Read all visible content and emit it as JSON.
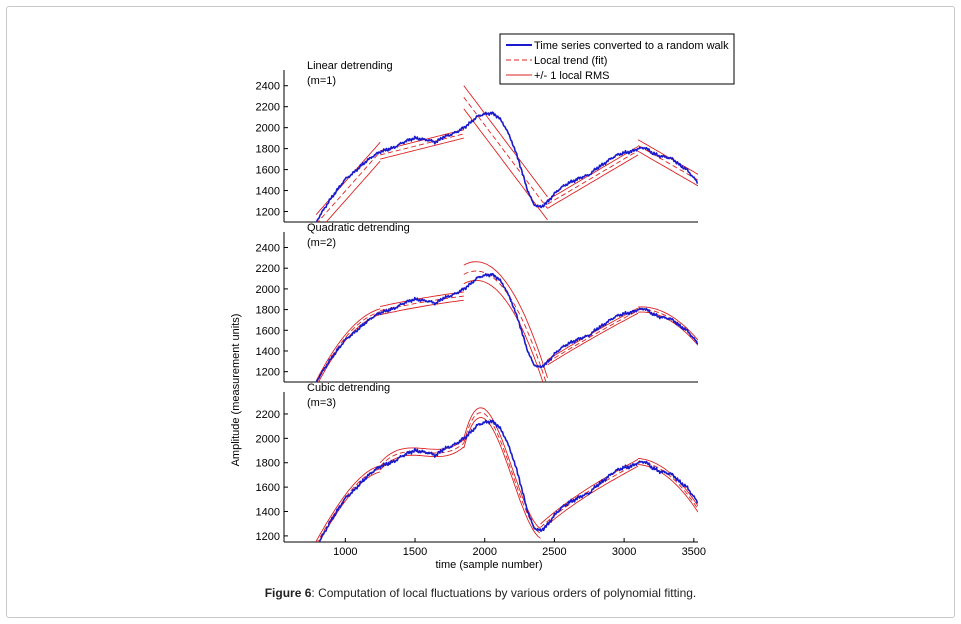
{
  "figure": {
    "caption_label": "Figure 6",
    "caption_text": ": Computation of local fluctuations by various orders of polynomial fitting."
  },
  "chart_data": {
    "type": "line",
    "xlabel": "time (sample number)",
    "ylabel": "Amplitude (measurement units)",
    "xlim": [
      560,
      3530
    ],
    "x_ticks": [
      "1000",
      "1500",
      "2000",
      "2500",
      "3000",
      "3500"
    ],
    "legend": {
      "placement": "top-right",
      "entries": [
        {
          "label": "Time series converted to a random walk",
          "color": "#1a1acc",
          "style": "solid-thick"
        },
        {
          "label": "Local trend (fit)",
          "color": "#dd2222",
          "style": "dashed"
        },
        {
          "label": "+/- 1 local RMS",
          "color": "#dd2222",
          "style": "solid-thin"
        }
      ]
    },
    "series_color": "#1a1acc",
    "fit_color": "#dd2222",
    "walk": {
      "x": [
        790,
        850,
        900,
        950,
        1000,
        1050,
        1100,
        1150,
        1200,
        1250,
        1300,
        1350,
        1400,
        1450,
        1500,
        1550,
        1600,
        1650,
        1700,
        1750,
        1800,
        1850,
        1900,
        1950,
        2000,
        2050,
        2100,
        2150,
        2200,
        2250,
        2300,
        2350,
        2400,
        2450,
        2500,
        2550,
        2600,
        2650,
        2700,
        2750,
        2800,
        2850,
        2900,
        2950,
        3000,
        3050,
        3100,
        3150,
        3200,
        3250,
        3300,
        3350,
        3400,
        3450,
        3500,
        3530
      ],
      "y": [
        1100,
        1230,
        1330,
        1420,
        1510,
        1560,
        1620,
        1680,
        1730,
        1770,
        1790,
        1810,
        1850,
        1880,
        1900,
        1890,
        1880,
        1860,
        1910,
        1930,
        1960,
        2000,
        2050,
        2110,
        2130,
        2140,
        2100,
        2000,
        1850,
        1660,
        1430,
        1270,
        1240,
        1290,
        1370,
        1430,
        1470,
        1500,
        1530,
        1550,
        1610,
        1650,
        1700,
        1740,
        1760,
        1770,
        1800,
        1810,
        1760,
        1730,
        1720,
        1700,
        1640,
        1600,
        1520,
        1470
      ]
    },
    "panels": [
      {
        "title": "Linear detrending",
        "order": "(m=1)",
        "ylim": [
          1100,
          2550
        ],
        "y_ticks": [
          1200,
          1400,
          1600,
          1800,
          2000,
          2200,
          2400
        ],
        "segments": [
          {
            "x0": 790,
            "x1": 1250,
            "fit": [
              1080,
              1770
            ],
            "rms": 90
          },
          {
            "x0": 1250,
            "x1": 1850,
            "fit": [
              1740,
              1940
            ],
            "rms": 40
          },
          {
            "x0": 1850,
            "x1": 2450,
            "fit": [
              2290,
              1230
            ],
            "rms": 110
          },
          {
            "x0": 2450,
            "x1": 3100,
            "fit": [
              1270,
              1780
            ],
            "rms": 40
          },
          {
            "x0": 3100,
            "x1": 3530,
            "fit": [
              1830,
              1500
            ],
            "rms": 55
          }
        ]
      },
      {
        "title": "Quadratic detrending",
        "order": "(m=2)",
        "ylim": [
          1100,
          2550
        ],
        "y_ticks": [
          1200,
          1400,
          1600,
          1800,
          2000,
          2200,
          2400
        ],
        "segments": [
          {
            "x0": 790,
            "x1": 1250,
            "fit": [
              1080,
              1560,
              1780
            ],
            "rms": 28
          },
          {
            "x0": 1250,
            "x1": 1850,
            "fit": [
              1790,
              1870,
              1930
            ],
            "rms": 40
          },
          {
            "x0": 1850,
            "x1": 2450,
            "fit": [
              2140,
              1980,
              1050
            ],
            "rms": 90
          },
          {
            "x0": 2450,
            "x1": 3100,
            "fit": [
              1290,
              1550,
              1790
            ],
            "rms": 25
          },
          {
            "x0": 3100,
            "x1": 3530,
            "fit": [
              1800,
              1730,
              1480
            ],
            "rms": 25
          }
        ]
      },
      {
        "title": "Cubic detrending",
        "order": "(m=3)",
        "ylim": [
          1150,
          2380
        ],
        "y_ticks": [
          1200,
          1400,
          1600,
          1800,
          2000,
          2200
        ],
        "segments": [
          {
            "x0": 790,
            "x1": 1250,
            "fit": [
              1130,
              1420,
              1640,
              1750
            ],
            "rms": 25
          },
          {
            "x0": 1250,
            "x1": 1850,
            "fit": [
              1770,
              1890,
              1880,
              1960
            ],
            "rms": 30
          },
          {
            "x0": 1850,
            "x1": 2400,
            "fit": [
              1960,
              2160,
              1650,
              1220
            ],
            "rms": 40
          },
          {
            "x0": 2400,
            "x1": 3100,
            "fit": [
              1270,
              1480,
              1650,
              1800
            ],
            "rms": 28
          },
          {
            "x0": 3100,
            "x1": 3530,
            "fit": [
              1810,
              1760,
              1630,
              1420
            ],
            "rms": 25
          }
        ]
      }
    ]
  }
}
